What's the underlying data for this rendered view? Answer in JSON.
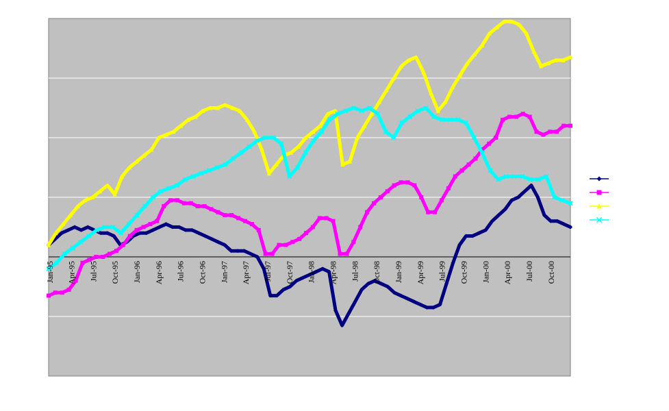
{
  "chart_data": {
    "type": "line",
    "title": "",
    "xlabel": "",
    "ylabel": "",
    "grid": true,
    "legend_position": "right",
    "background_color": "#c0c0c0",
    "gridline_color": "#ffffff",
    "x_ticks": [
      "Jan-95",
      "Apr-95",
      "Jul-95",
      "Oct-95",
      "Jan-96",
      "Apr-96",
      "Jul-96",
      "Oct-96",
      "Jan-97",
      "Apr-97",
      "Jul-97",
      "Oct-97",
      "Jan-98",
      "Apr-98",
      "Jul-98",
      "Oct-98",
      "Jan-99",
      "Apr-99",
      "Jul-99",
      "Oct-99",
      "Jan-00",
      "Apr-00",
      "Jul-00",
      "Oct-00"
    ],
    "y_levels": [
      -2,
      -1,
      0,
      1,
      2,
      3,
      4
    ],
    "ylim": [
      -2,
      4
    ],
    "series": [
      {
        "color": "#000080",
        "marker": "diamond",
        "values": [
          0.2,
          0.3,
          0.4,
          0.45,
          0.5,
          0.45,
          0.5,
          0.45,
          0.4,
          0.4,
          0.35,
          0.2,
          0.25,
          0.35,
          0.4,
          0.4,
          0.45,
          0.5,
          0.55,
          0.5,
          0.5,
          0.45,
          0.45,
          0.4,
          0.35,
          0.3,
          0.25,
          0.2,
          0.1,
          0.1,
          0.1,
          0.05,
          0.0,
          -0.2,
          -0.65,
          -0.65,
          -0.55,
          -0.5,
          -0.4,
          -0.35,
          -0.3,
          -0.25,
          -0.2,
          -0.25,
          -0.9,
          -1.15,
          -0.95,
          -0.75,
          -0.55,
          -0.45,
          -0.4,
          -0.45,
          -0.5,
          -0.6,
          -0.65,
          -0.7,
          -0.75,
          -0.8,
          -0.85,
          -0.85,
          -0.8,
          -0.45,
          -0.1,
          0.2,
          0.35,
          0.35,
          0.4,
          0.45,
          0.6,
          0.7,
          0.8,
          0.95,
          1.0,
          1.1,
          1.2,
          1.0,
          0.7,
          0.6,
          0.6,
          0.55,
          0.5
        ]
      },
      {
        "color": "#ff00ff",
        "marker": "square",
        "values": [
          -0.65,
          -0.6,
          -0.6,
          -0.55,
          -0.4,
          -0.1,
          -0.05,
          0.0,
          0.0,
          0.05,
          0.1,
          0.2,
          0.35,
          0.45,
          0.5,
          0.55,
          0.6,
          0.85,
          0.95,
          0.95,
          0.9,
          0.9,
          0.85,
          0.85,
          0.8,
          0.75,
          0.7,
          0.7,
          0.65,
          0.6,
          0.55,
          0.45,
          0.05,
          0.05,
          0.2,
          0.2,
          0.25,
          0.3,
          0.4,
          0.5,
          0.65,
          0.65,
          0.6,
          0.05,
          0.05,
          0.25,
          0.5,
          0.75,
          0.9,
          1.0,
          1.1,
          1.2,
          1.25,
          1.25,
          1.2,
          1.0,
          0.75,
          0.75,
          0.95,
          1.15,
          1.35,
          1.45,
          1.55,
          1.65,
          1.8,
          1.9,
          2.0,
          2.3,
          2.35,
          2.35,
          2.4,
          2.35,
          2.1,
          2.05,
          2.1,
          2.1,
          2.2,
          2.2
        ]
      },
      {
        "color": "#ffff00",
        "marker": "triangle",
        "values": [
          0.2,
          0.4,
          0.55,
          0.7,
          0.85,
          0.95,
          1.0,
          1.1,
          1.2,
          1.05,
          1.35,
          1.5,
          1.6,
          1.7,
          1.8,
          2.0,
          2.05,
          2.1,
          2.2,
          2.3,
          2.35,
          2.45,
          2.5,
          2.5,
          2.55,
          2.5,
          2.45,
          2.3,
          2.1,
          1.8,
          1.4,
          1.55,
          1.7,
          1.75,
          1.85,
          2.0,
          2.1,
          2.2,
          2.4,
          2.45,
          1.55,
          1.6,
          2.0,
          2.2,
          2.4,
          2.6,
          2.8,
          3.0,
          3.2,
          3.3,
          3.35,
          3.1,
          2.75,
          2.45,
          2.6,
          2.85,
          3.05,
          3.25,
          3.4,
          3.55,
          3.75,
          3.85,
          3.95,
          3.95,
          3.9,
          3.75,
          3.45,
          3.2,
          3.25,
          3.3,
          3.3,
          3.35
        ]
      },
      {
        "color": "#00ffff",
        "marker": "x",
        "values": [
          -0.2,
          -0.1,
          0.05,
          0.15,
          0.25,
          0.35,
          0.45,
          0.5,
          0.5,
          0.4,
          0.55,
          0.7,
          0.85,
          1.0,
          1.1,
          1.15,
          1.2,
          1.3,
          1.35,
          1.4,
          1.45,
          1.5,
          1.55,
          1.65,
          1.75,
          1.85,
          1.95,
          2.0,
          2.0,
          1.9,
          1.35,
          1.5,
          1.75,
          1.95,
          2.1,
          2.3,
          2.4,
          2.45,
          2.5,
          2.45,
          2.5,
          2.4,
          2.1,
          2.0,
          2.25,
          2.35,
          2.45,
          2.5,
          2.35,
          2.3,
          2.3,
          2.3,
          2.25,
          2.0,
          1.75,
          1.45,
          1.3,
          1.35,
          1.35,
          1.35,
          1.3,
          1.3,
          1.35,
          1.0,
          0.95,
          0.9
        ]
      }
    ]
  }
}
